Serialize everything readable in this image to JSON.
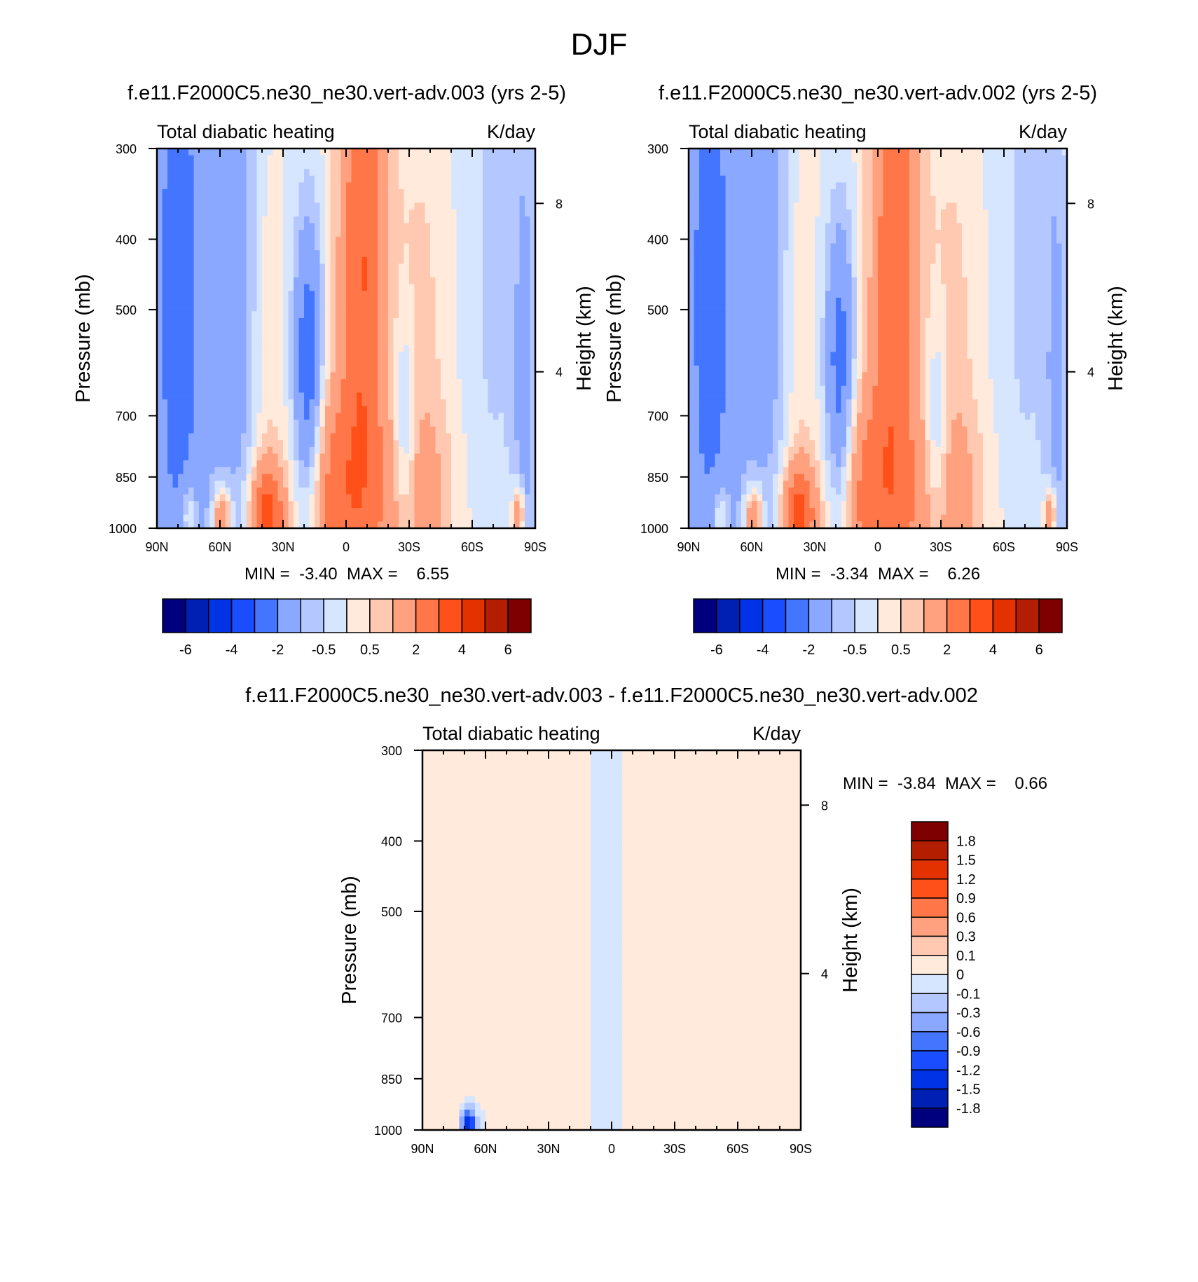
{
  "figure": {
    "title": "DJF"
  },
  "colors": {
    "panel_scale": [
      "#00007f",
      "#0020b4",
      "#0033e5",
      "#1a4dff",
      "#4375ff",
      "#8aa8ff",
      "#b4c8ff",
      "#d6e6ff",
      "#ffeadc",
      "#ffc8b0",
      "#ffa07e",
      "#ff7748",
      "#ff501a",
      "#e33100",
      "#b41e00",
      "#7f0000"
    ],
    "diff_scale": [
      "#00007f",
      "#0020b4",
      "#0033e5",
      "#1a4dff",
      "#4375ff",
      "#8aa8ff",
      "#b4c8ff",
      "#d6e6ff",
      "#ffeadc",
      "#ffc8b0",
      "#ffa07e",
      "#ff7748",
      "#ff501a",
      "#e33100",
      "#b41e00",
      "#7f0000"
    ]
  },
  "chart_data": [
    {
      "type": "heatmap",
      "title": "f.e11.F2000C5.ne30_ne30.vert-adv.003 (yrs 2-5)",
      "left_subtitle": "Total diabatic heating",
      "right_subtitle": "K/day",
      "ylabel": "Pressure (mb)",
      "y2label": "Height (km)",
      "y_ticks": [
        "300",
        "400",
        "500",
        "700",
        "850",
        "1000"
      ],
      "y_tick_values": [
        300,
        400,
        500,
        700,
        850,
        1000
      ],
      "y_scale": "log",
      "y2_ticks": [
        "8",
        "4"
      ],
      "y2_tick_pressures": [
        357,
        609
      ],
      "x_ticks": [
        "90N",
        "60N",
        "30N",
        "0",
        "30S",
        "60S",
        "90S"
      ],
      "x_tick_values": [
        90,
        60,
        30,
        0,
        -30,
        -60,
        -90
      ],
      "minmax_text": "MIN =  -3.40  MAX =    6.55",
      "min": -3.4,
      "max": 6.55,
      "colorbar_labels": [
        "-6",
        "-4",
        "-2",
        "-0.5",
        "0.5",
        "2",
        "4",
        "6"
      ],
      "colorbar_levels": [
        -7,
        -6,
        -5,
        -4,
        -3,
        -2,
        -1,
        -0.5,
        0,
        0.5,
        1,
        2,
        3,
        4,
        5,
        6
      ],
      "features": [
        {
          "lat": 80,
          "p": 480,
          "v": -2.6,
          "sx": 10,
          "sy": 0.9
        },
        {
          "lat": 52,
          "p": 450,
          "v": -1.4,
          "sx": 10,
          "sy": 1.0
        },
        {
          "lat": 18,
          "p": 620,
          "v": -3.0,
          "sx": 5,
          "sy": 0.35
        },
        {
          "lat": 38,
          "p": 560,
          "v": 0.8,
          "sx": 6,
          "sy": 0.5
        },
        {
          "lat": -8,
          "p": 430,
          "v": 3.0,
          "sx": 8,
          "sy": 0.8
        },
        {
          "lat": 8,
          "p": 900,
          "v": 2.2,
          "sx": 10,
          "sy": 0.25
        },
        {
          "lat": -35,
          "p": 560,
          "v": 0.7,
          "sx": 9,
          "sy": 0.55
        },
        {
          "lat": -30,
          "p": 930,
          "v": 1.3,
          "sx": 15,
          "sy": 0.22
        },
        {
          "lat": -28,
          "p": 760,
          "v": -1.6,
          "sx": 4,
          "sy": 0.25
        },
        {
          "lat": -70,
          "p": 430,
          "v": -0.6,
          "sx": 10,
          "sy": 0.9
        },
        {
          "lat": -85,
          "p": 650,
          "v": -1.2,
          "sx": 4,
          "sy": 0.7
        },
        {
          "lat": 38,
          "p": 960,
          "v": 3.5,
          "sx": 6,
          "sy": 0.12
        },
        {
          "lat": 59,
          "p": 970,
          "v": 3.0,
          "sx": 3,
          "sy": 0.07
        },
        {
          "lat": 75,
          "p": 960,
          "v": 1.5,
          "sx": 3,
          "sy": 0.08
        },
        {
          "lat": -82,
          "p": 960,
          "v": 2.5,
          "sx": 2,
          "sy": 0.07
        }
      ]
    },
    {
      "type": "heatmap",
      "title": "f.e11.F2000C5.ne30_ne30.vert-adv.002 (yrs 2-5)",
      "left_subtitle": "Total diabatic heating",
      "right_subtitle": "K/day",
      "ylabel": "Pressure (mb)",
      "y2label": "Height (km)",
      "y_ticks": [
        "300",
        "400",
        "500",
        "700",
        "850",
        "1000"
      ],
      "y_tick_values": [
        300,
        400,
        500,
        700,
        850,
        1000
      ],
      "y_scale": "log",
      "y2_ticks": [
        "8",
        "4"
      ],
      "y2_tick_pressures": [
        357,
        609
      ],
      "x_ticks": [
        "90N",
        "60N",
        "30N",
        "0",
        "30S",
        "60S",
        "90S"
      ],
      "x_tick_values": [
        90,
        60,
        30,
        0,
        -30,
        -60,
        -90
      ],
      "minmax_text": "MIN =  -3.34  MAX =    6.26",
      "min": -3.34,
      "max": 6.26,
      "colorbar_labels": [
        "-6",
        "-4",
        "-2",
        "-0.5",
        "0.5",
        "2",
        "4",
        "6"
      ],
      "colorbar_levels": [
        -7,
        -6,
        -5,
        -4,
        -3,
        -2,
        -1,
        -0.5,
        0,
        0.5,
        1,
        2,
        3,
        4,
        5,
        6
      ],
      "features": [
        {
          "lat": 80,
          "p": 480,
          "v": -2.5,
          "sx": 10,
          "sy": 0.9
        },
        {
          "lat": 52,
          "p": 450,
          "v": -1.3,
          "sx": 10,
          "sy": 1.0
        },
        {
          "lat": 18,
          "p": 630,
          "v": -2.8,
          "sx": 5,
          "sy": 0.35
        },
        {
          "lat": 38,
          "p": 560,
          "v": 0.8,
          "sx": 6,
          "sy": 0.5
        },
        {
          "lat": -8,
          "p": 430,
          "v": 2.9,
          "sx": 8,
          "sy": 0.8
        },
        {
          "lat": 8,
          "p": 900,
          "v": 2.1,
          "sx": 10,
          "sy": 0.25
        },
        {
          "lat": -35,
          "p": 560,
          "v": 0.7,
          "sx": 9,
          "sy": 0.55
        },
        {
          "lat": -30,
          "p": 930,
          "v": 1.3,
          "sx": 15,
          "sy": 0.22
        },
        {
          "lat": -28,
          "p": 760,
          "v": -1.5,
          "sx": 4,
          "sy": 0.25
        },
        {
          "lat": -70,
          "p": 430,
          "v": -0.6,
          "sx": 10,
          "sy": 0.9
        },
        {
          "lat": -85,
          "p": 650,
          "v": -1.1,
          "sx": 4,
          "sy": 0.7
        },
        {
          "lat": 38,
          "p": 960,
          "v": 3.4,
          "sx": 6,
          "sy": 0.12
        },
        {
          "lat": 59,
          "p": 970,
          "v": 2.9,
          "sx": 3,
          "sy": 0.07
        },
        {
          "lat": 75,
          "p": 960,
          "v": 1.5,
          "sx": 3,
          "sy": 0.08
        },
        {
          "lat": -82,
          "p": 960,
          "v": 2.4,
          "sx": 2,
          "sy": 0.07
        }
      ]
    },
    {
      "type": "heatmap",
      "title": "f.e11.F2000C5.ne30_ne30.vert-adv.003 - f.e11.F2000C5.ne30_ne30.vert-adv.002",
      "left_subtitle": "Total diabatic heating",
      "right_subtitle": "K/day",
      "ylabel": "Pressure (mb)",
      "y2label": "Height (km)",
      "y_ticks": [
        "300",
        "400",
        "500",
        "700",
        "850",
        "1000"
      ],
      "y_tick_values": [
        300,
        400,
        500,
        700,
        850,
        1000
      ],
      "y_scale": "log",
      "y2_ticks": [
        "8",
        "4"
      ],
      "y2_tick_pressures": [
        357,
        609
      ],
      "x_ticks": [
        "90N",
        "60N",
        "30N",
        "0",
        "30S",
        "60S",
        "90S"
      ],
      "x_tick_values": [
        90,
        60,
        30,
        0,
        -30,
        -60,
        -90
      ],
      "minmax_text": "MIN =  -3.84  MAX =    0.66",
      "min": -3.84,
      "max": 0.66,
      "colorbar_labels": [
        "1.8",
        "1.5",
        "1.2",
        "0.9",
        "0.6",
        "0.3",
        "0.1",
        "0",
        "-0.1",
        "-0.3",
        "-0.6",
        "-0.9",
        "-1.2",
        "-1.5",
        "-1.8"
      ],
      "colorbar_levels": [
        -2.1,
        -1.8,
        -1.5,
        -1.2,
        -0.9,
        -0.6,
        -0.3,
        -0.1,
        0,
        0.1,
        0.3,
        0.6,
        0.9,
        1.2,
        1.5,
        1.8
      ],
      "features": [
        {
          "lat": 75,
          "p": 550,
          "v": 0.06,
          "sx": 5,
          "sy": 1.2
        },
        {
          "lat": 35,
          "p": 550,
          "v": 0.07,
          "sx": 6,
          "sy": 1.2
        },
        {
          "lat": 0,
          "p": 500,
          "v": -0.12,
          "sx": 2,
          "sy": 1.0
        },
        {
          "lat": -12,
          "p": 600,
          "v": 0.07,
          "sx": 3,
          "sy": 1.2
        },
        {
          "lat": -30,
          "p": 600,
          "v": 0.1,
          "sx": 5,
          "sy": 1.2
        },
        {
          "lat": -72,
          "p": 600,
          "v": 0.06,
          "sx": 9,
          "sy": 1.2
        },
        {
          "lat": 68,
          "p": 985,
          "v": -1.6,
          "sx": 2,
          "sy": 0.03
        }
      ]
    }
  ]
}
